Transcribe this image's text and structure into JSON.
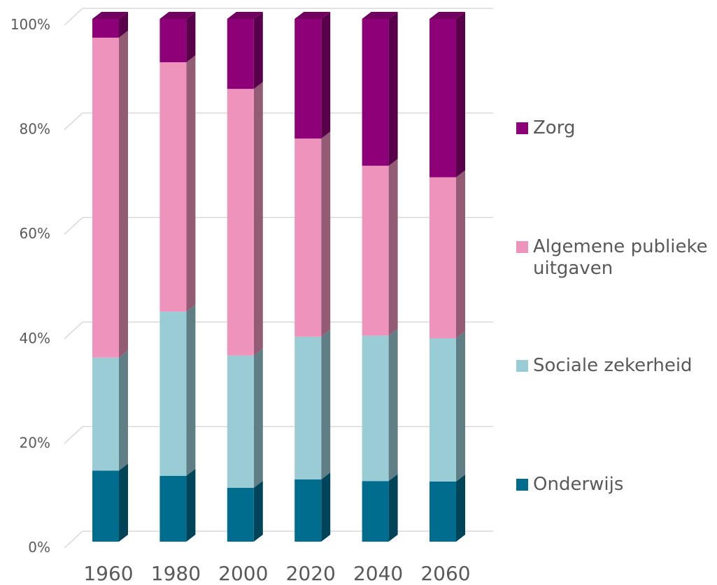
{
  "chart_data": {
    "type": "bar",
    "stacked": true,
    "categories": [
      "1960",
      "1980",
      "2000",
      "2020",
      "2040",
      "2060"
    ],
    "series": [
      {
        "name": "Onderwijs",
        "color": "#006d8f",
        "values": [
          13.6,
          12.6,
          10.3,
          11.9,
          11.6,
          11.5
        ]
      },
      {
        "name": "Sociale zekerheid",
        "color": "#9accd6",
        "values": [
          21.6,
          31.4,
          25.3,
          27.3,
          27.8,
          27.4
        ]
      },
      {
        "name": "Algemene publieke uitgaven",
        "color": "#ee93bc",
        "values": [
          61.2,
          47.7,
          51.0,
          37.9,
          32.5,
          30.8
        ]
      },
      {
        "name": "Zorg",
        "color": "#8e0078",
        "values": [
          3.6,
          8.3,
          13.4,
          22.9,
          28.1,
          30.3
        ]
      }
    ],
    "ylim": [
      0,
      100
    ],
    "yticks": [
      {
        "value": 0,
        "label": "0%"
      },
      {
        "value": 20,
        "label": "20%"
      },
      {
        "value": 40,
        "label": "40%"
      },
      {
        "value": 60,
        "label": "60%"
      },
      {
        "value": 80,
        "label": "80%"
      },
      {
        "value": 100,
        "label": "100%"
      }
    ],
    "grid": true,
    "legend": "right"
  }
}
